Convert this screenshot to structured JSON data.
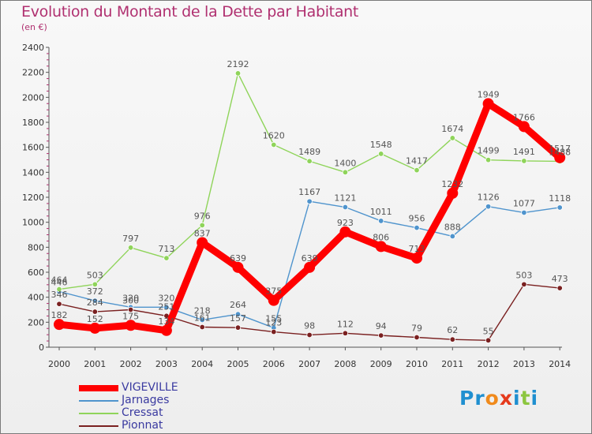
{
  "title": "Evolution du Montant de la Dette par Habitant",
  "subtitle": "(en €)",
  "logo": {
    "text": "Proxiti",
    "letters": [
      "P",
      "r",
      "o",
      "x",
      "i",
      "t",
      "i"
    ],
    "colors": [
      "#1f8fd0",
      "#1f8fd0",
      "#f08a1c",
      "#e53a1c",
      "#1f8fd0",
      "#8cc63f",
      "#1f8fd0"
    ]
  },
  "chart_data": {
    "type": "line",
    "title": "Evolution du Montant de la Dette par Habitant",
    "subtitle": "(en €)",
    "xlabel": "",
    "ylabel": "",
    "categories": [
      "2000",
      "2001",
      "2002",
      "2003",
      "2004",
      "2005",
      "2006",
      "2007",
      "2008",
      "2009",
      "2010",
      "2011",
      "2012",
      "2013",
      "2014"
    ],
    "y_ticks": [
      "0",
      "200",
      "400",
      "600",
      "800",
      "1000",
      "1200",
      "1400",
      "1600",
      "1800",
      "2000",
      "2200",
      "2400"
    ],
    "ylim": [
      0,
      2400
    ],
    "grid": false,
    "legend_position": "bottom-left",
    "series": [
      {
        "name": "VIGEVILLE",
        "color": "#ff0000",
        "line_width": 9,
        "marker_radius": 7,
        "values": [
          182,
          152,
          175,
          134,
          837,
          639,
          375,
          639,
          923,
          806,
          713,
          1232,
          1949,
          1766,
          1517
        ],
        "labels": [
          "182",
          "152",
          "175",
          "134",
          "837",
          "639",
          "375",
          "639",
          "923",
          "806",
          "713",
          "1232",
          "1949",
          "1766",
          "1517"
        ]
      },
      {
        "name": "Jarnages",
        "color": "#4f94cd",
        "line_width": 1.4,
        "marker_radius": 3.3,
        "values": [
          446,
          372,
          320,
          320,
          218,
          264,
          155,
          1167,
          1121,
          1011,
          956,
          888,
          1126,
          1077,
          1118
        ],
        "labels": [
          "446",
          "372",
          "320",
          "320",
          "218",
          "264",
          "155",
          "1167",
          "1121",
          "1011",
          "956",
          "888",
          "1126",
          "1077",
          "1118"
        ]
      },
      {
        "name": "Cressat",
        "color": "#8fd45a",
        "line_width": 1.4,
        "marker_radius": 3.3,
        "values": [
          464,
          503,
          797,
          713,
          976,
          2192,
          1620,
          1489,
          1400,
          1548,
          1417,
          1674,
          1499,
          1491,
          1488
        ],
        "labels": [
          "464",
          "503",
          "797",
          "713",
          "976",
          "2192",
          "1620",
          "1489",
          "1400",
          "1548",
          "1417",
          "1674",
          "1499",
          "1491",
          "1488"
        ]
      },
      {
        "name": "Pionnat",
        "color": "#7a2020",
        "line_width": 1.4,
        "marker_radius": 3.3,
        "values": [
          346,
          284,
          300,
          251,
          161,
          157,
          123,
          98,
          112,
          94,
          79,
          62,
          55,
          503,
          473
        ],
        "labels": [
          "346",
          "284",
          "300",
          "251",
          "161",
          "157",
          "123",
          "98",
          "112",
          "94",
          "79",
          "62",
          "55",
          "503",
          "473"
        ]
      }
    ]
  }
}
